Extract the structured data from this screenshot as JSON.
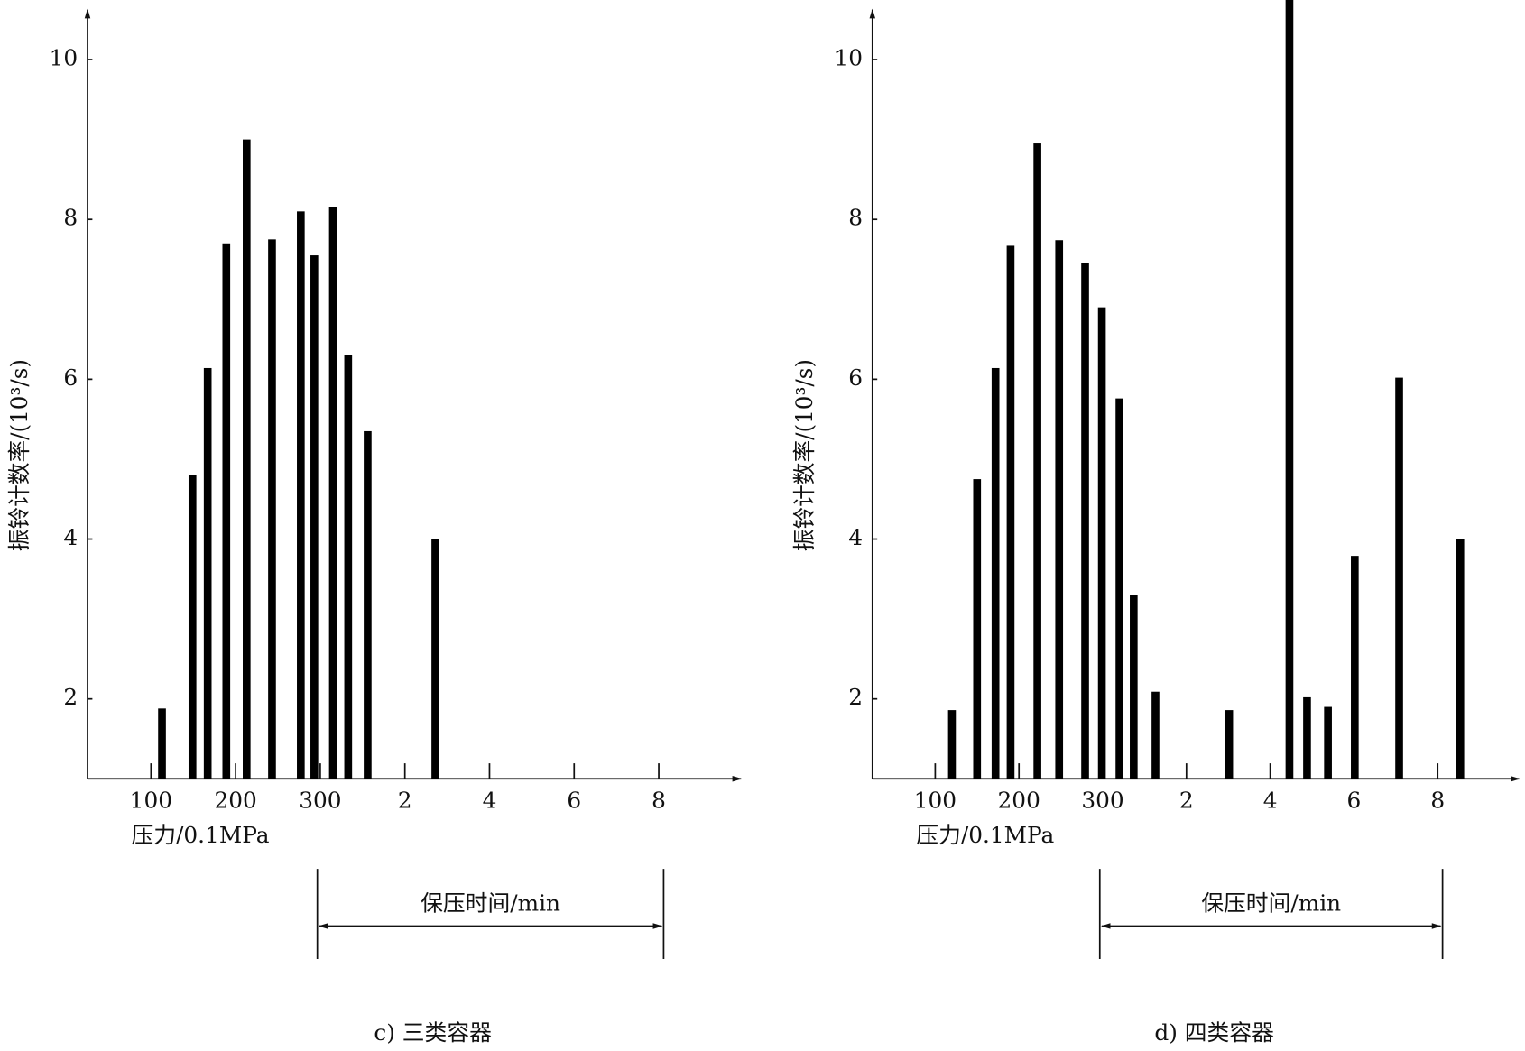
{
  "chart_data": [
    {
      "type": "bar",
      "ylabel": "振铃计数率/(10³/s)",
      "xlabel": "压力/0.1MPa",
      "annotation": "保压时间/min",
      "caption": "c) 三类容器",
      "x": [
        113,
        149,
        167,
        189,
        213,
        243,
        277,
        293,
        315,
        333,
        356,
        436
      ],
      "values": [
        1.88,
        4.8,
        6.14,
        7.7,
        9.0,
        7.75,
        8.1,
        7.55,
        8.15,
        6.3,
        5.35,
        4.0
      ],
      "color": "#000000",
      "xlim": [
        25,
        795
      ],
      "ylim": [
        1,
        10.6
      ],
      "xticks": [
        100,
        200,
        300,
        {
          "value": 400,
          "label": "2"
        },
        {
          "value": 500,
          "label": "4"
        },
        {
          "value": 600,
          "label": "6"
        },
        {
          "value": 700,
          "label": "8"
        }
      ],
      "yticks": [
        2,
        4,
        6,
        8,
        10
      ]
    },
    {
      "type": "bar",
      "ylabel": "振铃计数率/(10³/s)",
      "xlabel": "压力/0.1MPa",
      "annotation": "保压时间/min",
      "caption": "d) 四类容器",
      "x": [
        120,
        150,
        172,
        190,
        222,
        248,
        279,
        299,
        320,
        337,
        363,
        451,
        523,
        544,
        569,
        601,
        654,
        727
      ],
      "values": [
        1.86,
        4.75,
        6.14,
        7.67,
        8.95,
        7.74,
        7.45,
        6.9,
        5.76,
        3.3,
        2.09,
        1.86,
        10.8,
        2.02,
        1.9,
        3.79,
        6.02,
        4.0
      ],
      "color": "#000000",
      "xlim": [
        25,
        795
      ],
      "ylim": [
        1,
        10.6
      ],
      "xticks": [
        100,
        200,
        300,
        {
          "value": 400,
          "label": "2"
        },
        {
          "value": 500,
          "label": "4"
        },
        {
          "value": 600,
          "label": "6"
        },
        {
          "value": 700,
          "label": "8"
        }
      ],
      "yticks": [
        2,
        4,
        6,
        8,
        10
      ]
    }
  ]
}
